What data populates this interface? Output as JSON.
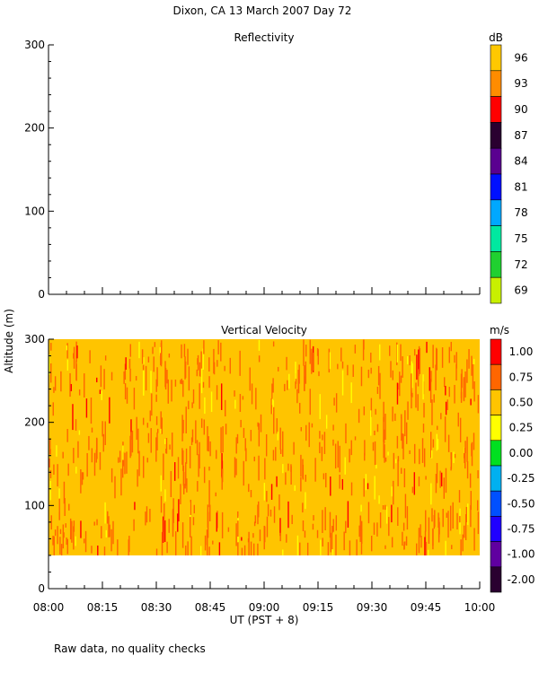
{
  "page": {
    "title": "Dixon, CA 13 March 2007  Day  72",
    "y_axis_label": "Altitude (m)",
    "x_axis_label": "UT  (PST + 8)",
    "footnote": "Raw data, no quality checks"
  },
  "chart_data": [
    {
      "type": "heatmap",
      "title": "Reflectivity",
      "ylabel": "Altitude (m)",
      "xlabel": "UT  (PST + 8)",
      "x_range": [
        "08:00",
        "10:00"
      ],
      "ylim": [
        0,
        300
      ],
      "y_ticks": [
        "0",
        "100",
        "200",
        "300"
      ],
      "x_ticks": [
        "08:00",
        "08:15",
        "08:30",
        "08:45",
        "09:00",
        "09:15",
        "09:30",
        "09:45",
        "10:00"
      ],
      "colorbar": {
        "unit": "dB",
        "labels": [
          "96",
          "93",
          "90",
          "87",
          "84",
          "81",
          "78",
          "75",
          "72",
          "69"
        ],
        "colors": [
          "#ffc800",
          "#ff8c00",
          "#ff0000",
          "#2a0030",
          "#5a0090",
          "#0010ff",
          "#00a8ff",
          "#00e8a0",
          "#20d030",
          "#c8f000"
        ]
      },
      "values": []
    },
    {
      "type": "heatmap",
      "title": "Vertical Velocity",
      "ylabel": "Altitude (m)",
      "xlabel": "UT  (PST + 8)",
      "x_range": [
        "08:00",
        "10:00"
      ],
      "ylim": [
        0,
        300
      ],
      "data_altitude_range": [
        40,
        300
      ],
      "y_ticks": [
        "0",
        "100",
        "200",
        "300"
      ],
      "x_ticks": [
        "08:00",
        "08:15",
        "08:30",
        "08:45",
        "09:00",
        "09:15",
        "09:30",
        "09:45",
        "10:00"
      ],
      "colorbar": {
        "unit": "m/s",
        "labels": [
          "1.00",
          "0.75",
          "0.50",
          "0.25",
          "0.00",
          "-0.25",
          "-0.50",
          "-0.75",
          "-1.00",
          "-2.00"
        ],
        "colors": [
          "#ff0000",
          "#ff6600",
          "#ffc400",
          "#ffff00",
          "#00e020",
          "#00b0f0",
          "#0050ff",
          "#2000ff",
          "#6000a0",
          "#2a0030"
        ]
      },
      "value_range_present": [
        0.5,
        1.0
      ],
      "dominant_values": [
        "0.50",
        "0.75"
      ]
    }
  ]
}
